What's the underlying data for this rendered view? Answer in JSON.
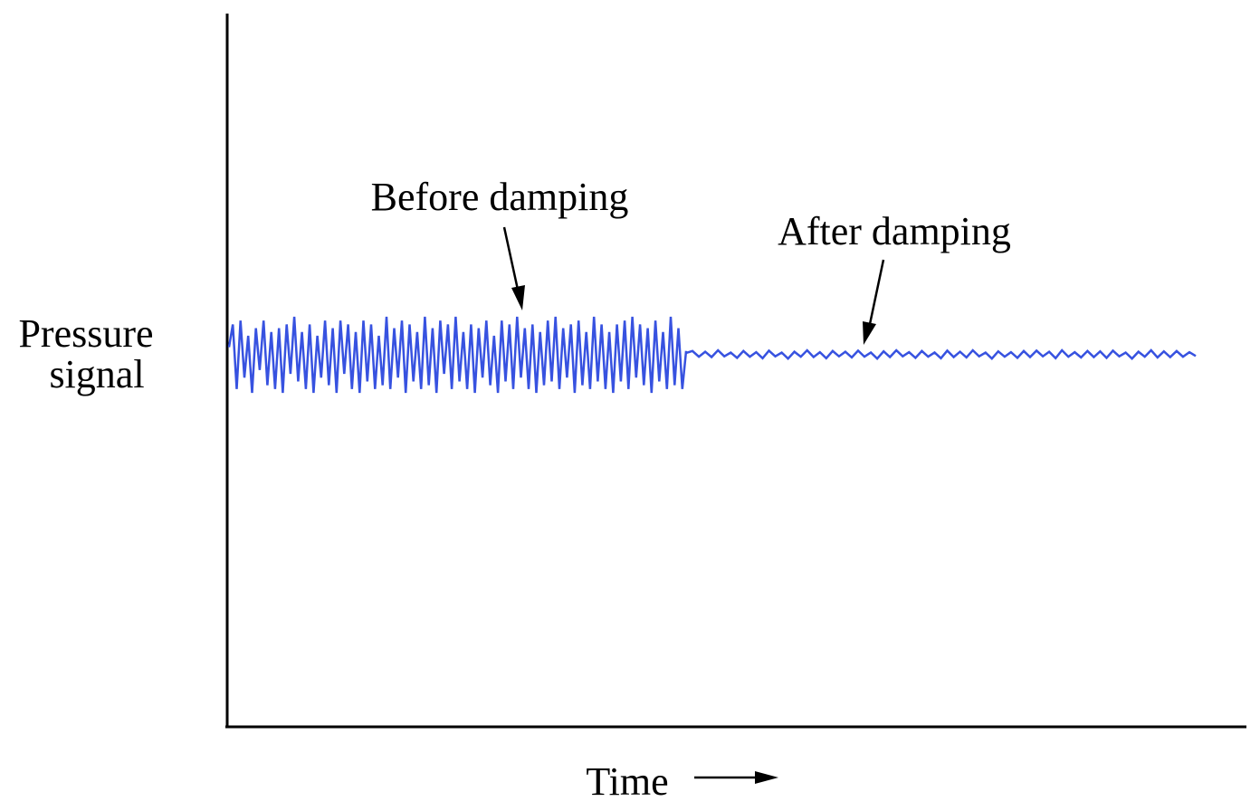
{
  "chart_data": {
    "type": "line",
    "ylabel_lines": [
      "Pressure",
      "signal"
    ],
    "xlabel": "Time",
    "grid": false,
    "annotations": {
      "before": "Before damping",
      "after": "After damping"
    },
    "series": [
      {
        "segment": "before damping",
        "x": [
          0,
          1,
          2,
          3,
          4,
          5,
          6,
          7,
          8,
          9,
          10,
          11,
          12,
          13,
          14,
          15,
          16,
          17,
          18,
          19,
          20,
          21,
          22,
          23,
          24,
          25,
          26,
          27,
          28,
          29,
          30,
          31,
          32,
          33,
          34,
          35,
          36,
          37,
          38,
          39,
          40,
          41,
          42,
          43,
          44,
          45,
          46,
          47,
          48,
          49,
          50,
          51,
          52,
          53,
          54,
          55,
          56,
          57,
          58,
          59,
          60,
          61,
          62,
          63,
          64,
          65,
          66,
          67,
          68,
          69,
          70,
          71,
          72,
          73,
          74,
          75,
          76,
          77,
          78,
          79,
          80,
          81,
          82,
          83,
          84,
          85,
          86,
          87,
          88,
          89,
          90,
          91,
          92,
          93,
          94,
          95,
          96,
          97,
          98,
          99,
          100,
          101,
          102,
          103,
          104,
          105,
          106,
          107,
          108,
          109,
          110,
          111,
          112,
          113,
          114,
          115,
          116,
          117,
          118,
          119
        ],
        "y": [
          0.2,
          0.8,
          -0.9,
          0.9,
          -0.6,
          0.5,
          -1.0,
          0.7,
          -0.4,
          0.9,
          -0.8,
          0.6,
          -0.9,
          0.7,
          -1.0,
          0.8,
          -0.5,
          1.0,
          -0.7,
          0.6,
          -0.9,
          0.8,
          -1.0,
          0.5,
          -0.6,
          0.9,
          -0.8,
          0.7,
          -1.0,
          0.9,
          -0.5,
          0.8,
          -0.9,
          0.6,
          -1.0,
          0.9,
          -0.7,
          0.8,
          -0.9,
          0.5,
          -0.8,
          1.0,
          -0.9,
          0.7,
          -0.6,
          0.9,
          -1.0,
          0.8,
          -0.7,
          0.6,
          -0.9,
          1.0,
          -0.8,
          0.7,
          -1.0,
          0.9,
          -0.5,
          0.8,
          -0.9,
          1.0,
          -0.7,
          0.6,
          -0.9,
          0.8,
          -1.0,
          0.7,
          -0.6,
          0.9,
          -0.8,
          0.5,
          -1.0,
          0.9,
          -0.7,
          0.8,
          -0.9,
          1.0,
          -0.6,
          0.7,
          -0.9,
          0.8,
          -1.0,
          0.6,
          -0.8,
          0.9,
          -0.7,
          1.0,
          -0.9,
          0.7,
          -0.6,
          0.8,
          -1.0,
          0.9,
          -0.8,
          0.6,
          -0.9,
          1.0,
          -0.7,
          0.8,
          -0.9,
          0.6,
          -1.0,
          0.8,
          -0.7,
          0.9,
          -0.9,
          1.0,
          -0.6,
          0.8,
          -0.8,
          0.7,
          -1.0,
          0.9,
          -0.7,
          0.6,
          -0.9,
          1.0,
          -0.8,
          0.7,
          -0.9,
          0.1
        ]
      },
      {
        "segment": "after damping",
        "x": [
          0,
          1,
          2,
          3,
          4,
          5,
          6,
          7,
          8,
          9,
          10,
          11,
          12,
          13,
          14,
          15,
          16,
          17,
          18,
          19,
          20,
          21,
          22,
          23,
          24,
          25,
          26,
          27,
          28,
          29,
          30,
          31,
          32,
          33,
          34,
          35,
          36,
          37,
          38,
          39,
          40,
          41,
          42,
          43,
          44,
          45,
          46,
          47,
          48,
          49,
          50,
          51,
          52,
          53,
          54,
          55,
          56,
          57,
          58,
          59,
          60,
          61,
          62,
          63,
          64,
          65,
          66,
          67,
          68,
          69,
          70,
          71,
          72,
          73,
          74,
          75,
          76,
          77,
          78,
          79,
          80
        ],
        "y": [
          0.05,
          0.1,
          -0.05,
          0.08,
          -0.06,
          0.12,
          -0.04,
          0.06,
          -0.08,
          0.1,
          -0.05,
          0.07,
          -0.09,
          0.11,
          -0.04,
          0.06,
          -0.1,
          0.08,
          -0.05,
          0.12,
          -0.06,
          0.07,
          -0.09,
          0.1,
          -0.04,
          0.08,
          -0.07,
          0.11,
          -0.05,
          0.06,
          -0.1,
          0.09,
          -0.06,
          0.12,
          -0.04,
          0.07,
          -0.08,
          0.1,
          -0.05,
          0.06,
          -0.09,
          0.11,
          -0.06,
          0.08,
          -0.07,
          0.12,
          -0.04,
          0.06,
          -0.1,
          0.09,
          -0.05,
          0.07,
          -0.08,
          0.1,
          -0.06,
          0.11,
          -0.04,
          0.08,
          -0.09,
          0.12,
          -0.05,
          0.07,
          -0.07,
          0.1,
          -0.06,
          0.09,
          -0.08,
          0.11,
          -0.04,
          0.06,
          -0.1,
          0.08,
          -0.05,
          0.12,
          -0.07,
          0.09,
          -0.06,
          0.1,
          -0.05,
          0.07,
          -0.03
        ]
      }
    ],
    "colors": {
      "signal": "#3752e0",
      "axis": "#000000"
    }
  }
}
